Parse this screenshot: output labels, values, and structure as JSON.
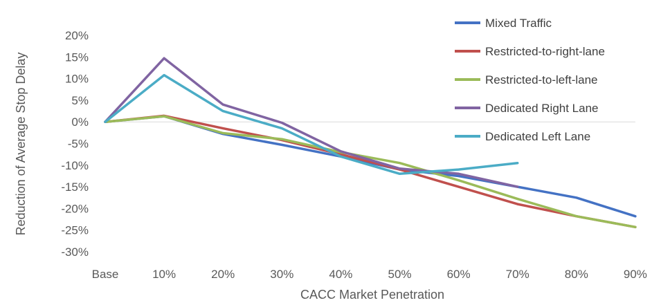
{
  "chart_data": {
    "type": "line",
    "categories": [
      "Base",
      "10%",
      "20%",
      "30%",
      "40%",
      "50%",
      "60%",
      "70%",
      "80%",
      "90%"
    ],
    "xlabel": "CACC Market Penetration",
    "ylabel": "Reduction of Average Stop Delay",
    "ylim": [
      -30,
      20
    ],
    "yticks": [
      "20%",
      "15%",
      "10%",
      "5%",
      "0%",
      "-5%",
      "-10%",
      "-15%",
      "-20%",
      "-25%",
      "-30%"
    ],
    "grid": false,
    "legend": "top-right",
    "series": [
      {
        "name": "Mixed Traffic",
        "color": "#4472C4",
        "values": [
          0,
          1.3,
          -2.8,
          -5.3,
          -8.0,
          -11.0,
          -12.5,
          -15.0,
          -17.5,
          -21.8
        ]
      },
      {
        "name": "Restricted-to-right-lane",
        "color": "#C0504D",
        "values": [
          0,
          1.4,
          -1.5,
          -4.2,
          -7.5,
          -11.0,
          -15.0,
          -19.0,
          -21.8,
          -24.3
        ]
      },
      {
        "name": "Restricted-to-left-lane",
        "color": "#9BBB59",
        "values": [
          0,
          1.3,
          -2.6,
          -4.0,
          -7.0,
          -9.5,
          -13.5,
          -17.8,
          -21.8,
          -24.3
        ]
      },
      {
        "name": "Dedicated Right Lane",
        "color": "#8064A2",
        "values": [
          0,
          14.7,
          4.0,
          -0.2,
          -6.8,
          -10.8,
          -12.0,
          -15.0,
          null,
          null
        ]
      },
      {
        "name": "Dedicated Left Lane",
        "color": "#4BACC6",
        "values": [
          0,
          10.8,
          2.5,
          -1.5,
          -8.0,
          -12.0,
          -11.0,
          -9.5,
          null,
          null
        ]
      }
    ]
  }
}
